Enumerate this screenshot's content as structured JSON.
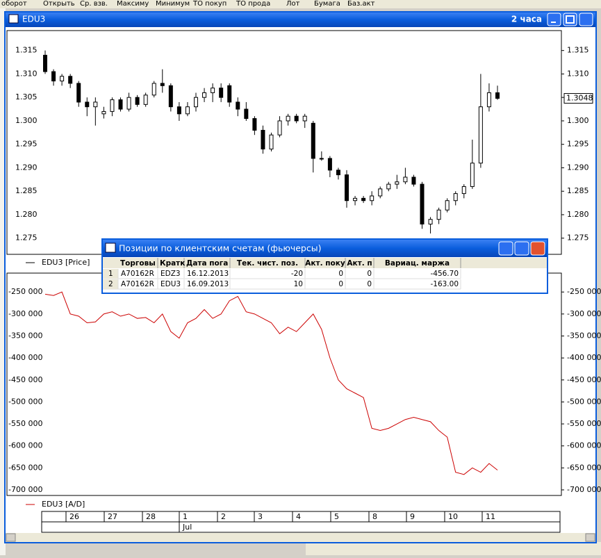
{
  "background_header": [
    "оборот",
    "Открыть",
    "Ср. взв.",
    "Максиму",
    "Минимум",
    "ТО покуп",
    "ТО прода",
    "Лот",
    "Бумага",
    "Баз.акт"
  ],
  "window": {
    "title": "EDU3",
    "interval": "2 часа"
  },
  "price_chart": {
    "type": "candlestick",
    "legend": "EDU3 [Price]",
    "ylim": [
      1.2717,
      1.3191
    ],
    "yticks": [
      1.315,
      {
        "value": 1.31,
        "label": "1.310"
      },
      1.305,
      {
        "value": 1.3,
        "label": "1.300"
      },
      1.295,
      {
        "value": 1.29,
        "label": "1.290"
      },
      1.285,
      {
        "value": 1.28,
        "label": "1.280"
      },
      1.275
    ],
    "last_price": 1.3048,
    "candles": [
      [
        1.314,
        1.315,
        1.31,
        1.3105
      ],
      [
        1.3105,
        1.311,
        1.3075,
        1.3085
      ],
      [
        1.3085,
        1.31,
        1.3075,
        1.3095
      ],
      [
        1.3095,
        1.31,
        1.307,
        1.308
      ],
      [
        1.308,
        1.3085,
        1.303,
        1.304
      ],
      [
        1.304,
        1.305,
        1.301,
        1.303
      ],
      [
        1.303,
        1.305,
        1.299,
        1.304
      ],
      [
        1.3015,
        1.303,
        1.3005,
        1.302
      ],
      [
        1.302,
        1.305,
        1.301,
        1.3045
      ],
      [
        1.3045,
        1.305,
        1.302,
        1.3025
      ],
      [
        1.3025,
        1.306,
        1.302,
        1.305
      ],
      [
        1.305,
        1.3055,
        1.303,
        1.3035
      ],
      [
        1.3035,
        1.306,
        1.303,
        1.3055
      ],
      [
        1.3055,
        1.3085,
        1.305,
        1.308
      ],
      [
        1.308,
        1.311,
        1.306,
        1.3075
      ],
      [
        1.3075,
        1.308,
        1.302,
        1.303
      ],
      [
        1.303,
        1.304,
        1.3,
        1.3015
      ],
      [
        1.3015,
        1.304,
        1.301,
        1.303
      ],
      [
        1.303,
        1.306,
        1.302,
        1.305
      ],
      [
        1.305,
        1.307,
        1.304,
        1.306
      ],
      [
        1.306,
        1.308,
        1.304,
        1.307
      ],
      [
        1.307,
        1.308,
        1.304,
        1.305
      ],
      [
        1.3075,
        1.308,
        1.303,
        1.304
      ],
      [
        1.304,
        1.305,
        1.301,
        1.3025
      ],
      [
        1.3025,
        1.304,
        1.3,
        1.3005
      ],
      [
        1.3005,
        1.301,
        1.297,
        1.298
      ],
      [
        1.298,
        1.299,
        1.293,
        1.294
      ],
      [
        1.294,
        1.2975,
        1.2935,
        1.297
      ],
      [
        1.297,
        1.301,
        1.2965,
        1.3
      ],
      [
        1.3,
        1.3015,
        1.299,
        1.301
      ],
      [
        1.301,
        1.3015,
        1.2995,
        1.3
      ],
      [
        1.3,
        1.3015,
        1.2985,
        1.301
      ],
      [
        1.2995,
        1.3,
        1.289,
        1.292
      ],
      [
        1.292,
        1.2935,
        1.2915,
        1.292
      ],
      [
        1.292,
        1.2925,
        1.288,
        1.2895
      ],
      [
        1.2895,
        1.29,
        1.2875,
        1.2885
      ],
      [
        1.2885,
        1.2895,
        1.2815,
        1.283
      ],
      [
        1.283,
        1.284,
        1.282,
        1.2835
      ],
      [
        1.2835,
        1.284,
        1.2825,
        1.283
      ],
      [
        1.283,
        1.285,
        1.282,
        1.284
      ],
      [
        1.284,
        1.286,
        1.2835,
        1.2855
      ],
      [
        1.2855,
        1.287,
        1.285,
        1.2865
      ],
      [
        1.2865,
        1.2885,
        1.2855,
        1.287
      ],
      [
        1.287,
        1.29,
        1.2865,
        1.288
      ],
      [
        1.288,
        1.2885,
        1.286,
        1.2865
      ],
      [
        1.2865,
        1.287,
        1.277,
        1.278
      ],
      [
        1.278,
        1.2795,
        1.276,
        1.279
      ],
      [
        1.279,
        1.2815,
        1.278,
        1.281
      ],
      [
        1.281,
        1.2835,
        1.2805,
        1.283
      ],
      [
        1.283,
        1.285,
        1.282,
        1.2845
      ],
      [
        1.2845,
        1.2865,
        1.2835,
        1.286
      ],
      [
        1.286,
        1.296,
        1.2855,
        1.291
      ],
      [
        1.291,
        1.31,
        1.29,
        1.303
      ],
      [
        1.303,
        1.308,
        1.302,
        1.306
      ],
      [
        1.306,
        1.3075,
        1.3045,
        1.3048
      ]
    ]
  },
  "ad_chart": {
    "type": "line",
    "legend": "EDU3 [A/D]",
    "color": "#cc0000",
    "ylim": [
      -712700,
      -207000
    ],
    "yticks": [
      {
        "value": -250000,
        "label": "-250 000"
      },
      {
        "value": -300000,
        "label": "-300 000"
      },
      {
        "value": -350000,
        "label": "-350 000"
      },
      {
        "value": -400000,
        "label": "-400 000"
      },
      {
        "value": -450000,
        "label": "-450 000"
      },
      {
        "value": -500000,
        "label": "-500 000"
      },
      {
        "value": -550000,
        "label": "-550 000"
      },
      {
        "value": -600000,
        "label": "-600 000"
      },
      {
        "value": -650000,
        "label": "-650 000"
      },
      {
        "value": -700000,
        "label": "-700 000"
      }
    ],
    "values": [
      -255000,
      -258000,
      -250000,
      -300000,
      -305000,
      -320000,
      -318000,
      -300000,
      -295000,
      -305000,
      -300000,
      -310000,
      -308000,
      -320000,
      -300000,
      -340000,
      -355000,
      -320000,
      -310000,
      -290000,
      -310000,
      -300000,
      -270000,
      -260000,
      -295000,
      -300000,
      -310000,
      -320000,
      -345000,
      -330000,
      -340000,
      -320000,
      -300000,
      -335000,
      -400000,
      -450000,
      -470000,
      -480000,
      -490000,
      -560000,
      -565000,
      -560000,
      -550000,
      -540000,
      -535000,
      -540000,
      -545000,
      -565000,
      -580000,
      -660000,
      -665000,
      -650000,
      -660000,
      -640000,
      -655000
    ]
  },
  "time_axis": {
    "days": [
      "26",
      "27",
      "28",
      "1",
      "2",
      "3",
      "4",
      "5",
      "8",
      "9",
      "10",
      "11"
    ],
    "month": "Jul"
  },
  "dialog": {
    "title": "Позиции по клиентским счетам (фьючерсы)",
    "columns": [
      "Торговы",
      "Кратк",
      "Дата пога",
      "Тек. чист. поз.",
      "Акт. поку",
      "Акт. п",
      "Вариац. маржа"
    ],
    "rows": [
      [
        "1",
        "A70162R",
        "EDZ3",
        "16.12.2013",
        "-20",
        "0",
        "0",
        "-456.70"
      ],
      [
        "2",
        "A70162R",
        "EDU3",
        "16.09.2013",
        "10",
        "0",
        "0",
        "-163.00"
      ]
    ]
  }
}
